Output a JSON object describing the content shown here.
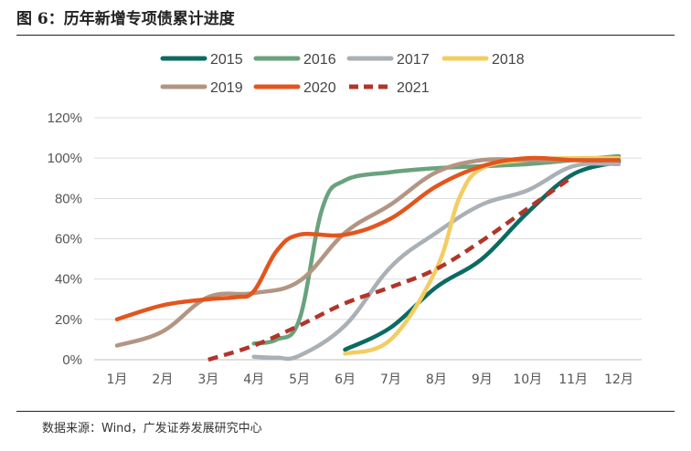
{
  "title": "图 6：历年新增专项债累计进度",
  "source": "数据来源：Wind，广发证券发展研究中心",
  "chart_data": {
    "type": "line",
    "xlabel": "",
    "ylabel": "",
    "categories": [
      "1月",
      "2月",
      "3月",
      "4月",
      "5月",
      "6月",
      "7月",
      "8月",
      "9月",
      "10月",
      "11月",
      "12月"
    ],
    "y_ticks": [
      "0%",
      "20%",
      "40%",
      "60%",
      "80%",
      "100%",
      "120%"
    ],
    "ylim": [
      0,
      120
    ],
    "grid": "horizontal",
    "legend_position": "top",
    "series": [
      {
        "name": "2015",
        "color": "#0b6a62",
        "dashed": false,
        "points": [
          [
            5,
            5
          ],
          [
            6,
            16
          ],
          [
            7,
            36
          ],
          [
            8,
            50
          ],
          [
            9,
            73
          ],
          [
            10,
            92
          ],
          [
            11,
            98
          ]
        ]
      },
      {
        "name": "2016",
        "color": "#6aa27e",
        "dashed": false,
        "points": [
          [
            3,
            8
          ],
          [
            3.5,
            10
          ],
          [
            4,
            20
          ],
          [
            4.5,
            75
          ],
          [
            5,
            89
          ],
          [
            6,
            93
          ],
          [
            7,
            95
          ],
          [
            8,
            96
          ],
          [
            9,
            97
          ],
          [
            10,
            99
          ],
          [
            11,
            101
          ]
        ]
      },
      {
        "name": "2017",
        "color": "#a9b0b6",
        "dashed": false,
        "points": [
          [
            3,
            1.5
          ],
          [
            3.5,
            1
          ],
          [
            4,
            2
          ],
          [
            5,
            17
          ],
          [
            6,
            46
          ],
          [
            7,
            63
          ],
          [
            8,
            77
          ],
          [
            9,
            84
          ],
          [
            10,
            96
          ],
          [
            11,
            97
          ]
        ]
      },
      {
        "name": "2018",
        "color": "#f3cd62",
        "dashed": false,
        "points": [
          [
            5,
            3
          ],
          [
            6,
            10
          ],
          [
            7,
            45
          ],
          [
            7.5,
            80
          ],
          [
            8,
            95
          ],
          [
            9,
            99
          ],
          [
            10,
            100
          ],
          [
            11,
            100
          ]
        ]
      },
      {
        "name": "2019",
        "color": "#b39583",
        "dashed": false,
        "points": [
          [
            0,
            7
          ],
          [
            1,
            14
          ],
          [
            2,
            31
          ],
          [
            3,
            33
          ],
          [
            4,
            39
          ],
          [
            5,
            63
          ],
          [
            6,
            77
          ],
          [
            7,
            93
          ],
          [
            8,
            99
          ],
          [
            9,
            99
          ],
          [
            10,
            99
          ],
          [
            11,
            99
          ]
        ]
      },
      {
        "name": "2020",
        "color": "#e2561e",
        "dashed": false,
        "points": [
          [
            0,
            20
          ],
          [
            1,
            27
          ],
          [
            2,
            30
          ],
          [
            2.6,
            31
          ],
          [
            3,
            34
          ],
          [
            3.5,
            54
          ],
          [
            4,
            62
          ],
          [
            5,
            62
          ],
          [
            6,
            70
          ],
          [
            7,
            86
          ],
          [
            8,
            96
          ],
          [
            9,
            100
          ],
          [
            10,
            99
          ],
          [
            11,
            99
          ]
        ]
      },
      {
        "name": "2021",
        "color": "#b1352a",
        "dashed": true,
        "points": [
          [
            2,
            0
          ],
          [
            3,
            7
          ],
          [
            4,
            17
          ],
          [
            5,
            28
          ],
          [
            6,
            36
          ],
          [
            7,
            45
          ],
          [
            8,
            59
          ],
          [
            9,
            75
          ],
          [
            10,
            91
          ]
        ]
      }
    ]
  }
}
